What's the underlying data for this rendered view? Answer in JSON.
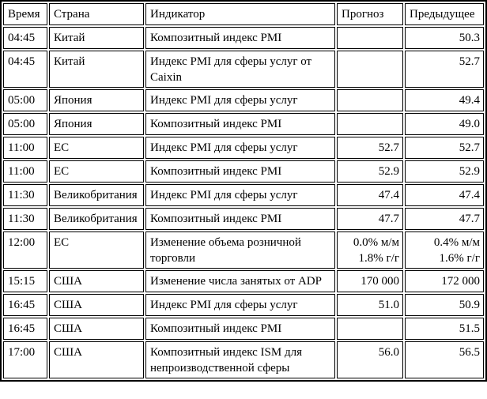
{
  "page": {
    "background_color": "#ffffff",
    "text_color": "#000000",
    "border_color": "#000000"
  },
  "table": {
    "title": "economic-calendar",
    "columns": [
      {
        "key": "time",
        "label": "Время"
      },
      {
        "key": "country",
        "label": "Страна"
      },
      {
        "key": "indicator",
        "label": "Индикатор"
      },
      {
        "key": "forecast",
        "label": "Прогноз"
      },
      {
        "key": "previous",
        "label": "Предыдущее"
      }
    ],
    "rows": [
      {
        "time": "04:45",
        "country": "Китай",
        "indicator": "Композитный индекс PMI",
        "forecast": "",
        "previous": "50.3"
      },
      {
        "time": "04:45",
        "country": "Китай",
        "indicator": "Индекс PMI для сферы услуг от Caixin",
        "forecast": "",
        "previous": "52.7"
      },
      {
        "time": "05:00",
        "country": "Япония",
        "indicator": "Индекс PMI для сферы услуг",
        "forecast": "",
        "previous": "49.4"
      },
      {
        "time": "05:00",
        "country": "Япония",
        "indicator": "Композитный индекс PMI",
        "forecast": "",
        "previous": "49.0"
      },
      {
        "time": "11:00",
        "country": "ЕС",
        "indicator": "Индекс PMI для сферы услуг",
        "forecast": "52.7",
        "previous": "52.7"
      },
      {
        "time": "11:00",
        "country": "ЕС",
        "indicator": "Композитный индекс PMI",
        "forecast": "52.9",
        "previous": "52.9"
      },
      {
        "time": "11:30",
        "country": "Великобритания",
        "indicator": "Индекс PMI для сферы услуг",
        "forecast": "47.4",
        "previous": "47.4"
      },
      {
        "time": "11:30",
        "country": "Великобритания",
        "indicator": "Композитный индекс PMI",
        "forecast": "47.7",
        "previous": "47.7"
      },
      {
        "time": "12:00",
        "country": "ЕС",
        "indicator": "Изменение объема розничной торговли",
        "forecast": "0.0% м/м\n1.8% г/г",
        "previous": "0.4% м/м\n1.6% г/г"
      },
      {
        "time": "15:15",
        "country": "США",
        "indicator": "Изменение числа занятых от ADP",
        "forecast": "170 000",
        "previous": "172 000"
      },
      {
        "time": "16:45",
        "country": "США",
        "indicator": "Индекс PMI для сферы услуг",
        "forecast": "51.0",
        "previous": "50.9"
      },
      {
        "time": "16:45",
        "country": "США",
        "indicator": "Композитный индекс PMI",
        "forecast": "",
        "previous": "51.5"
      },
      {
        "time": "17:00",
        "country": "США",
        "indicator": "Композитный индекс ISM для непроизводственной сферы",
        "forecast": "56.0",
        "previous": "56.5"
      }
    ]
  }
}
